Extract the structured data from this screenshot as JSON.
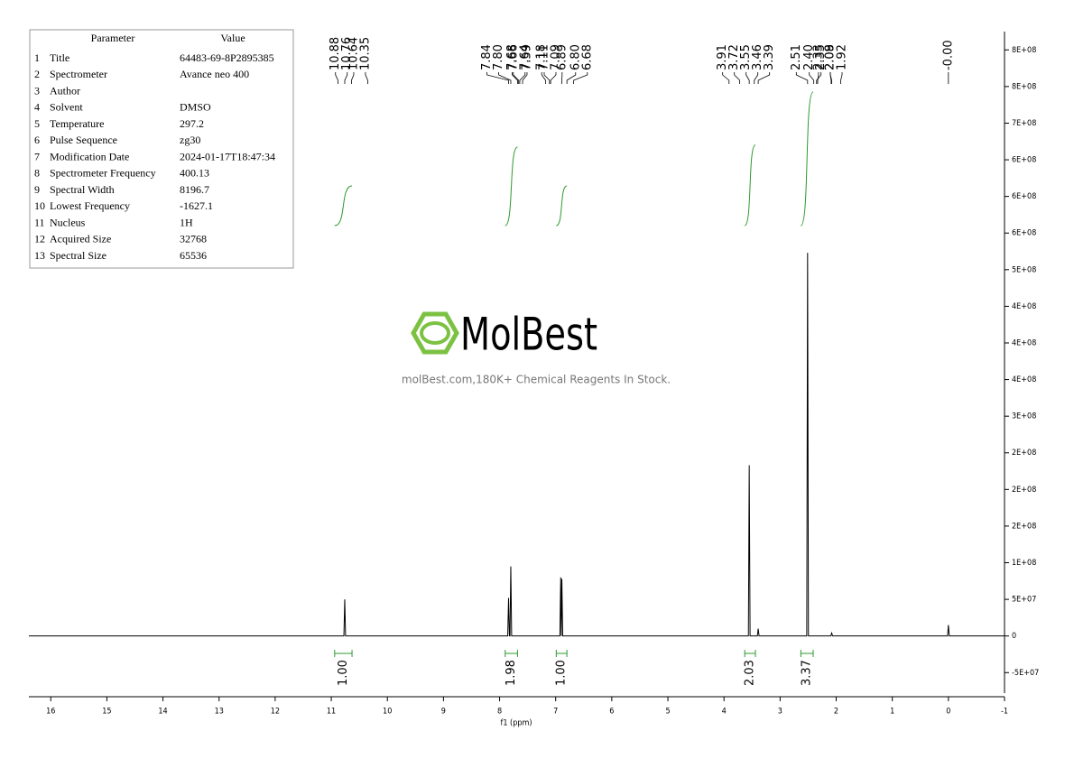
{
  "chart_data": {
    "type": "line",
    "x_label": "f1 (ppm)",
    "xlim": [
      16.39,
      -1
    ],
    "xticks": [
      16,
      15,
      14,
      13,
      12,
      11,
      10,
      9,
      8,
      7,
      6,
      5,
      4,
      3,
      2,
      1,
      0,
      -1
    ],
    "ylim": [
      -78000000,
      825000000
    ],
    "yticks": [
      {
        "value": -50000000,
        "label": "-5E+07"
      },
      0,
      {
        "value": 50000000,
        "label": "5E+07"
      },
      {
        "value": 100000000,
        "label": "1E+08"
      },
      {
        "value": 150000000,
        "label": "2E+08"
      },
      {
        "value": 200000000,
        "label": "2E+08"
      },
      {
        "value": 250000000,
        "label": "2E+08"
      },
      {
        "value": 300000000,
        "label": "3E+08"
      },
      {
        "value": 350000000,
        "label": "4E+08"
      },
      {
        "value": 400000000,
        "label": "4E+08"
      },
      {
        "value": 450000000,
        "label": "4E+08"
      },
      {
        "value": 500000000,
        "label": "5E+08"
      },
      {
        "value": 550000000,
        "label": "6E+08"
      },
      {
        "value": 600000000,
        "label": "6E+08"
      },
      {
        "value": 650000000,
        "label": "6E+08"
      },
      {
        "value": 700000000,
        "label": "7E+08"
      },
      {
        "value": 750000000,
        "label": "8E+08"
      },
      {
        "value": 800000000,
        "label": "8E+08"
      }
    ],
    "y_axis_side": "right",
    "series": [
      {
        "color": "#000000",
        "x": [
          16.39,
          10.775,
          10.76,
          10.745,
          7.855,
          7.84,
          7.825,
          7.815,
          7.8,
          7.785,
          6.925,
          6.91,
          6.9,
          6.89,
          6.875,
          3.565,
          3.55,
          3.535,
          3.405,
          3.39,
          3.375,
          2.525,
          2.51,
          2.495,
          2.095,
          2.08,
          2.065,
          0.015,
          0,
          -0.015,
          -1
        ],
        "values": [
          0,
          0,
          50000000,
          0,
          0,
          52000000,
          0,
          0,
          95000000,
          0,
          0,
          80000000,
          0,
          78000000,
          0,
          0,
          233000000,
          0,
          0,
          10000000,
          0,
          0,
          523000000,
          0,
          0,
          4000000,
          0,
          0,
          15000000,
          0,
          0
        ]
      }
    ],
    "peak_labels": [
      {
        "value": 10.88,
        "label": "10.88"
      },
      {
        "value": 10.76,
        "label": "10.76"
      },
      {
        "value": 10.64,
        "label": "10.64"
      },
      {
        "value": 10.35,
        "label": "10.35"
      },
      {
        "value": 7.84,
        "label": "7.84"
      },
      {
        "value": 7.8,
        "label": "7.80"
      },
      {
        "value": 7.68,
        "label": "7.68"
      },
      {
        "value": 7.66,
        "label": "7.66"
      },
      {
        "value": 7.64,
        "label": "7.64"
      },
      {
        "value": 7.59,
        "label": "7.59"
      },
      {
        "value": 7.18,
        "label": "7.18"
      },
      {
        "value": 7.11,
        "label": "7.11"
      },
      {
        "value": 7.09,
        "label": "7.09"
      },
      {
        "value": 6.89,
        "label": "6.89"
      },
      {
        "value": 6.8,
        "label": "6.80"
      },
      {
        "value": 6.68,
        "label": "6.68"
      },
      {
        "value": 3.91,
        "label": "3.91"
      },
      {
        "value": 3.72,
        "label": "3.72"
      },
      {
        "value": 3.55,
        "label": "3.55"
      },
      {
        "value": 3.46,
        "label": "3.46"
      },
      {
        "value": 3.39,
        "label": "3.39"
      },
      {
        "value": 2.51,
        "label": "2.51"
      },
      {
        "value": 2.4,
        "label": "2.40"
      },
      {
        "value": 2.35,
        "label": "2.35"
      },
      {
        "value": 2.33,
        "label": "2.33"
      },
      {
        "value": 2.09,
        "label": "2.09"
      },
      {
        "value": 2.08,
        "label": "2.08"
      },
      {
        "value": 1.92,
        "label": "1.92"
      },
      {
        "value": 0,
        "label": "-0.00"
      }
    ],
    "integral_color": "#2e9a2e",
    "integrals": [
      {
        "from": 10.94,
        "to": 10.63,
        "value": 1,
        "label": "1.00"
      },
      {
        "from": 7.9,
        "to": 7.68,
        "value": 1.98,
        "label": "1.98"
      },
      {
        "from": 6.99,
        "to": 6.8,
        "value": 1,
        "label": "1.00"
      },
      {
        "from": 3.63,
        "to": 3.44,
        "value": 2.03,
        "label": "2.03"
      },
      {
        "from": 2.63,
        "to": 2.41,
        "value": 3.37,
        "label": "3.37"
      }
    ],
    "parameter_table": {
      "header": [
        "Parameter",
        "Value"
      ],
      "rows": [
        [
          "1",
          "Title",
          "64483-69-8P2895385"
        ],
        [
          "2",
          "Spectrometer",
          "Avance neo 400"
        ],
        [
          "3",
          "Author"
        ],
        [
          "4",
          "Solvent",
          "DMSO"
        ],
        [
          "5",
          "Temperature",
          "297.2"
        ],
        [
          "6",
          "Pulse Sequence",
          "zg30"
        ],
        [
          "7",
          "Modification Date",
          "2024-01-17T18:47:34"
        ],
        [
          "8",
          "Spectrometer Frequency",
          "400.13"
        ],
        [
          "9",
          "Spectral Width",
          "8196.7"
        ],
        [
          "10",
          "Lowest Frequency",
          "-1627.1"
        ],
        [
          "11",
          "Nucleus",
          "1H"
        ],
        [
          "12",
          "Acquired Size",
          "32768"
        ],
        [
          "13",
          "Spectral Size",
          "65536"
        ]
      ]
    },
    "watermark": {
      "logo": "MolBest",
      "tagline": "molBest.com,180K+ Chemical Reagents In Stock."
    }
  }
}
